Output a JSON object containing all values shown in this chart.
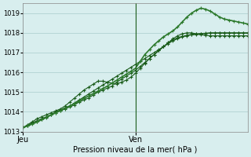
{
  "title": "",
  "xlabel": "Pression niveau de la mer( hPa )",
  "ylabel": "",
  "ylim": [
    1013,
    1019.5
  ],
  "xlim": [
    0,
    48
  ],
  "yticks": [
    1013,
    1014,
    1015,
    1016,
    1017,
    1018,
    1019
  ],
  "xtick_positions": [
    0,
    24
  ],
  "xtick_labels": [
    "Jeu",
    "Ven"
  ],
  "vline_x": 24,
  "bg_color": "#d8eeee",
  "grid_color": "#aacccc",
  "line_color": "#1a5c1a",
  "line_color2": "#2d7a2d",
  "series1": [
    0,
    1,
    2,
    3,
    4,
    5,
    6,
    7,
    8,
    9,
    10,
    11,
    12,
    13,
    14,
    15,
    16,
    17,
    18,
    19,
    20,
    21,
    22,
    23,
    24,
    25,
    26,
    27,
    28,
    29,
    30,
    31,
    32,
    33,
    34,
    35,
    36,
    37,
    38,
    39,
    40,
    41,
    42,
    43,
    44,
    45,
    46,
    47,
    48
  ],
  "y_line1": [
    1013.2,
    1013.3,
    1013.4,
    1013.5,
    1013.6,
    1013.7,
    1013.85,
    1014.0,
    1014.1,
    1014.2,
    1014.3,
    1014.45,
    1014.6,
    1014.75,
    1014.9,
    1015.05,
    1015.2,
    1015.35,
    1015.5,
    1015.65,
    1015.8,
    1015.95,
    1016.1,
    1016.25,
    1016.4,
    1016.55,
    1016.7,
    1016.85,
    1017.0,
    1017.15,
    1017.3,
    1017.45,
    1017.6,
    1017.7,
    1017.8,
    1017.85,
    1017.9,
    1017.92,
    1017.95,
    1017.97,
    1018.0,
    1018.0,
    1018.0,
    1018.0,
    1018.0,
    1018.0,
    1018.0,
    1018.0,
    1018.0
  ],
  "y_line2": [
    1013.2,
    1013.35,
    1013.5,
    1013.65,
    1013.75,
    1013.85,
    1013.95,
    1014.05,
    1014.15,
    1014.3,
    1014.5,
    1014.7,
    1014.9,
    1015.1,
    1015.25,
    1015.4,
    1015.55,
    1015.55,
    1015.5,
    1015.45,
    1015.4,
    1015.5,
    1015.6,
    1015.75,
    1015.95,
    1016.2,
    1016.45,
    1016.7,
    1016.9,
    1017.1,
    1017.3,
    1017.5,
    1017.7,
    1017.85,
    1017.95,
    1018.0,
    1018.0,
    1017.95,
    1017.9,
    1017.88,
    1017.85,
    1017.85,
    1017.85,
    1017.85,
    1017.85,
    1017.85,
    1017.85,
    1017.85,
    1017.85
  ],
  "y_line3": [
    1013.2,
    1013.3,
    1013.45,
    1013.55,
    1013.65,
    1013.75,
    1013.85,
    1013.95,
    1014.05,
    1014.15,
    1014.25,
    1014.35,
    1014.5,
    1014.6,
    1014.7,
    1014.85,
    1015.0,
    1015.1,
    1015.2,
    1015.3,
    1015.5,
    1015.65,
    1015.8,
    1015.95,
    1016.1,
    1016.3,
    1016.5,
    1016.7,
    1016.9,
    1017.1,
    1017.3,
    1017.5,
    1017.65,
    1017.75,
    1017.82,
    1017.88,
    1017.92,
    1017.95,
    1017.97,
    1017.98,
    1017.99,
    1017.99,
    1017.99,
    1017.99,
    1017.99,
    1017.99,
    1017.99,
    1017.99,
    1017.99
  ],
  "y_line4": [
    1013.2,
    1013.28,
    1013.38,
    1013.48,
    1013.6,
    1013.72,
    1013.84,
    1013.95,
    1014.06,
    1014.18,
    1014.3,
    1014.42,
    1014.55,
    1014.68,
    1014.8,
    1014.92,
    1015.05,
    1015.18,
    1015.3,
    1015.45,
    1015.6,
    1015.75,
    1015.9,
    1016.05,
    1016.2,
    1016.55,
    1016.9,
    1017.15,
    1017.4,
    1017.6,
    1017.8,
    1017.95,
    1018.1,
    1018.3,
    1018.55,
    1018.8,
    1019.0,
    1019.15,
    1019.25,
    1019.2,
    1019.1,
    1018.95,
    1018.8,
    1018.7,
    1018.65,
    1018.6,
    1018.55,
    1018.5,
    1018.45
  ]
}
